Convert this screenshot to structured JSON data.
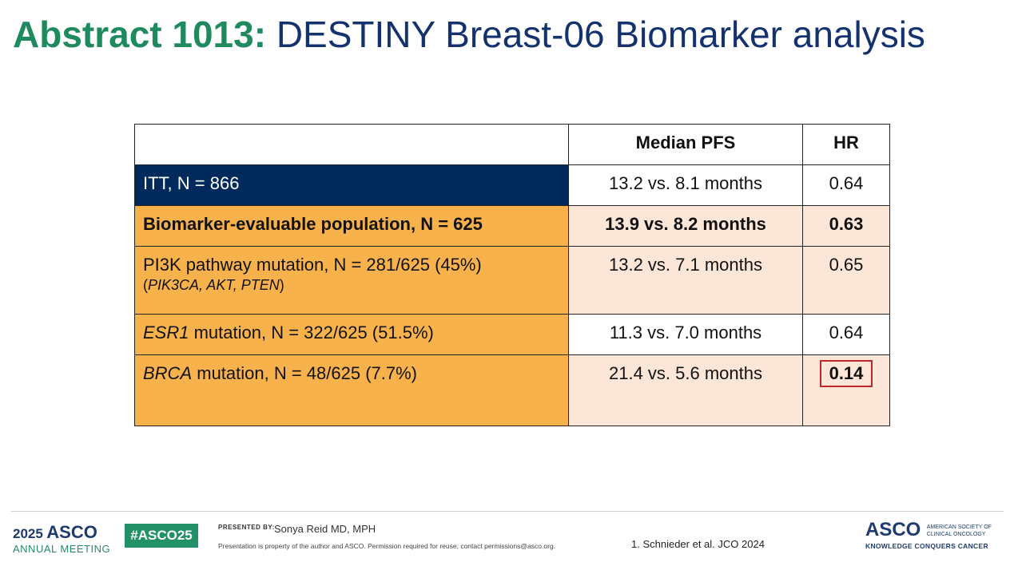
{
  "title": {
    "prefix": "Abstract 1013:",
    "main": "DESTINY Breast-06 Biomarker analysis"
  },
  "table": {
    "headers": [
      "",
      "Median PFS",
      "HR"
    ],
    "rows": [
      {
        "pre": "",
        "ital": "",
        "post": "ITT, N = 866",
        "sub": "",
        "pfs": "13.2 vs. 8.1 months",
        "hr": "0.64"
      },
      {
        "pre": "",
        "ital": "",
        "post": "Biomarker-evaluable population, N = 625",
        "sub": "",
        "pfs": "13.9 vs. 8.2 months",
        "hr": "0.63"
      },
      {
        "pre": "",
        "ital": "",
        "post": "PI3K pathway mutation, N = 281/625 (45%)",
        "sub_open": "(",
        "sub_ital": "PIK3CA, AKT, PTEN",
        "sub_close": ")",
        "pfs": "13.2 vs. 7.1 months",
        "hr": "0.65"
      },
      {
        "pre": "",
        "ital": "ESR1",
        "post": " mutation, N = 322/625 (51.5%)",
        "sub": "",
        "pfs": "11.3 vs. 7.0 months",
        "hr": "0.64"
      },
      {
        "pre": "",
        "ital": "BRCA",
        "post": " mutation, N = 48/625 (7.7%)",
        "sub": "",
        "pfs": "21.4 vs. 5.6 months",
        "hr": "0.14"
      }
    ]
  },
  "footer": {
    "year": "2025",
    "asco": "ASCO",
    "meeting": "ANNUAL MEETING",
    "hashtag": "#ASCO25",
    "presented_by": "PRESENTED BY:",
    "presenter": "Sonya Reid MD, MPH",
    "property": "Presentation is property of the author and ASCO. Permission required for reuse; contact permissions@asco.org.",
    "reference": "1. Schnieder et al. JCO 2024",
    "society_line1": "AMERICAN SOCIETY OF",
    "society_line2": "CLINICAL ONCOLOGY",
    "tagline": "KNOWLEDGE CONQUERS CANCER"
  },
  "colors": {
    "navy": "#012a5c",
    "orange": "#f8b24b",
    "peach": "#fbe6d8",
    "green": "#1f8a5e",
    "highlight_box": "#c0262d"
  }
}
